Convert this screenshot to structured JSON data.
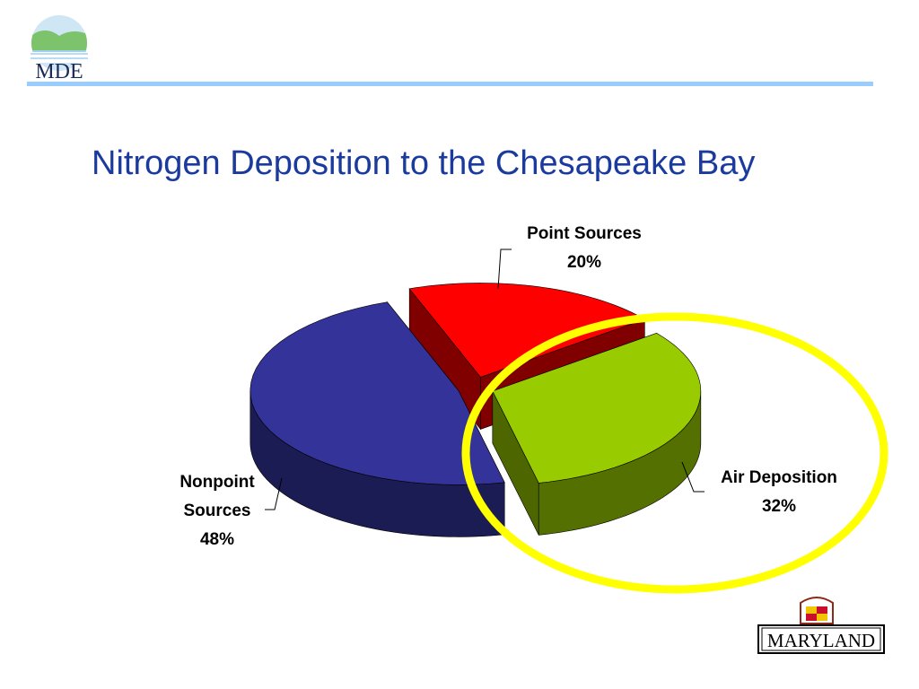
{
  "header": {
    "logo": "MDE"
  },
  "chart_data": {
    "type": "pie3d",
    "title": "Nitrogen Deposition to the Chesapeake Bay",
    "categories": [
      "Point Sources",
      "Air Deposition",
      "Nonpoint Sources"
    ],
    "values": [
      20,
      32,
      48
    ],
    "value_labels": [
      "20%",
      "32%",
      "48%"
    ],
    "colors": [
      "#ff0000",
      "#99cc00",
      "#333399"
    ]
  },
  "footer": {
    "logo": "MARYLAND"
  }
}
